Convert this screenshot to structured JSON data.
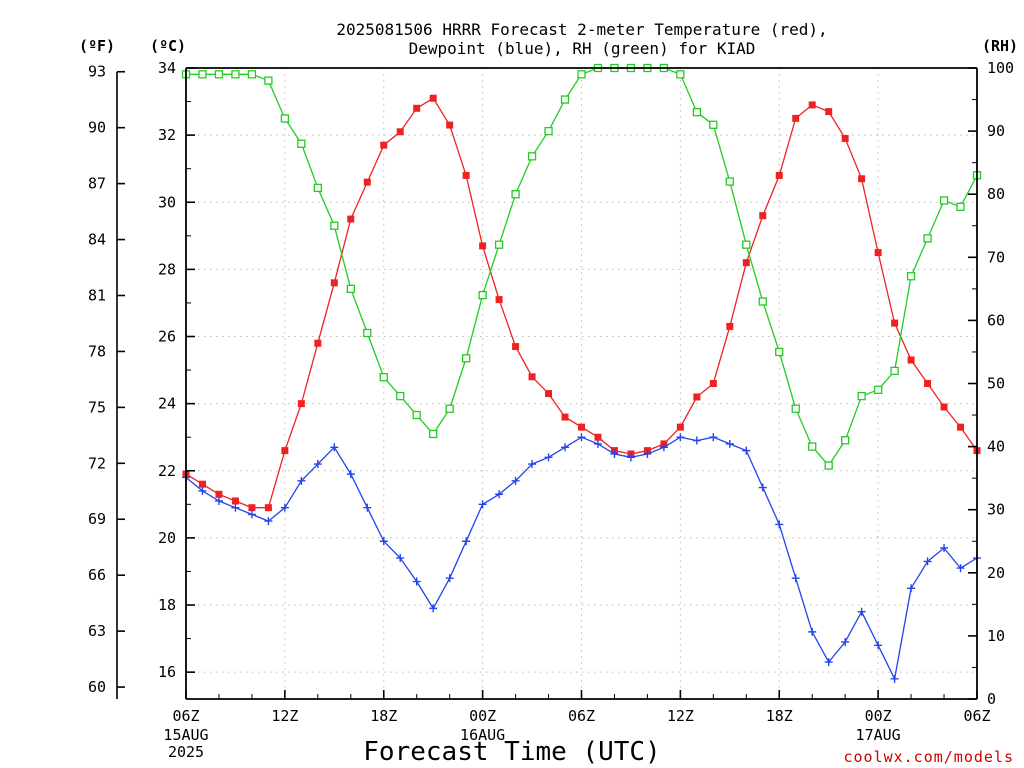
{
  "chart_data": {
    "type": "line",
    "title_lines": [
      "2025081506 HRRR Forecast 2-meter Temperature (red),",
      "Dewpoint (blue), RH (green) for KIAD"
    ],
    "xlabel": "Forecast Time (UTC)",
    "credit": "coolwx.com/models",
    "units": {
      "f": "(ºF)",
      "c": "(ºC)",
      "rh": "(RH)"
    },
    "x_hours": [
      0,
      1,
      2,
      3,
      4,
      5,
      6,
      7,
      8,
      9,
      10,
      11,
      12,
      13,
      14,
      15,
      16,
      17,
      18,
      19,
      20,
      21,
      22,
      23,
      24,
      25,
      26,
      27,
      28,
      29,
      30,
      31,
      32,
      33,
      34,
      35,
      36,
      37,
      38,
      39,
      40,
      41,
      42,
      43,
      44,
      45,
      46,
      47,
      48
    ],
    "xlim": [
      0,
      48
    ],
    "x_ticks": [
      {
        "hour": 0,
        "label": "06Z",
        "date": "15AUG",
        "year": "2025"
      },
      {
        "hour": 6,
        "label": "12Z"
      },
      {
        "hour": 12,
        "label": "18Z"
      },
      {
        "hour": 18,
        "label": "00Z",
        "date": "16AUG"
      },
      {
        "hour": 24,
        "label": "06Z"
      },
      {
        "hour": 30,
        "label": "12Z"
      },
      {
        "hour": 36,
        "label": "18Z"
      },
      {
        "hour": 42,
        "label": "00Z",
        "date": "17AUG"
      },
      {
        "hour": 48,
        "label": "06Z"
      }
    ],
    "y_left_c": {
      "ticks": [
        "34",
        "32",
        "30",
        "28",
        "26",
        "24",
        "22",
        "20",
        "18",
        "16"
      ],
      "ylim": [
        15.2,
        34
      ]
    },
    "y_left_f": {
      "ticks": [
        "93",
        "90",
        "87",
        "84",
        "81",
        "78",
        "75",
        "72",
        "69",
        "66",
        "63",
        "60"
      ]
    },
    "y_right_rh": {
      "ticks": [
        "100",
        "90",
        "80",
        "70",
        "60",
        "50",
        "40",
        "30",
        "20",
        "10",
        "0"
      ],
      "ylim": [
        0,
        100
      ]
    },
    "grid": true,
    "series": [
      {
        "name": "Temperature",
        "color": "#ee2222",
        "marker": "filled-square",
        "axis": "c",
        "values": [
          21.9,
          21.6,
          21.3,
          21.1,
          20.9,
          20.9,
          22.6,
          24.0,
          25.8,
          27.6,
          29.5,
          30.6,
          31.7,
          32.1,
          32.8,
          33.1,
          32.3,
          30.8,
          28.7,
          27.1,
          25.7,
          24.8,
          24.3,
          23.6,
          23.3,
          23.0,
          22.6,
          22.5,
          22.6,
          22.8,
          23.3,
          24.2,
          24.6,
          26.3,
          28.2,
          29.6,
          30.8,
          32.5,
          32.9,
          32.7,
          31.9,
          30.7,
          28.5,
          26.4,
          25.3,
          24.6,
          23.9,
          23.3,
          22.6
        ]
      },
      {
        "name": "Dewpoint",
        "color": "#2244ee",
        "marker": "plus",
        "axis": "c",
        "values": [
          21.8,
          21.4,
          21.1,
          20.9,
          20.7,
          20.5,
          20.9,
          21.7,
          22.2,
          22.7,
          21.9,
          20.9,
          19.9,
          19.4,
          18.7,
          17.9,
          18.8,
          19.9,
          21.0,
          21.3,
          21.7,
          22.2,
          22.4,
          22.7,
          23.0,
          22.8,
          22.5,
          22.4,
          22.5,
          22.7,
          23.0,
          22.9,
          23.0,
          22.8,
          22.6,
          21.5,
          20.4,
          18.8,
          17.2,
          16.3,
          16.9,
          17.8,
          16.8,
          15.8,
          18.5,
          19.3,
          19.7,
          19.1,
          19.4
        ]
      },
      {
        "name": "RH",
        "color": "#22cc22",
        "marker": "open-square",
        "axis": "rh",
        "values": [
          99,
          99,
          99,
          99,
          99,
          98,
          92,
          88,
          81,
          75,
          65,
          58,
          51,
          48,
          45,
          42,
          46,
          54,
          64,
          72,
          80,
          86,
          90,
          95,
          99,
          100,
          100,
          100,
          100,
          100,
          99,
          93,
          91,
          82,
          72,
          63,
          55,
          46,
          40,
          37,
          41,
          48,
          49,
          52,
          67,
          73,
          79,
          78,
          83
        ]
      }
    ]
  }
}
